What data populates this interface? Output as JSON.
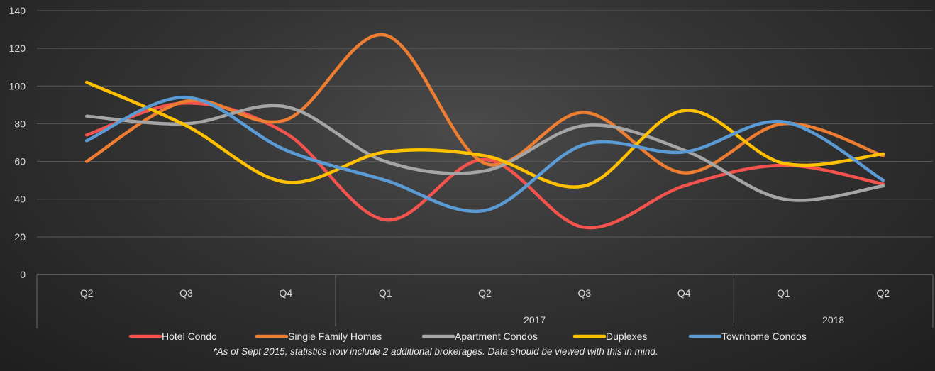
{
  "chart_data": {
    "type": "line",
    "smooth": true,
    "title": "",
    "xlabel": "",
    "ylabel": "",
    "ylim": [
      0,
      140
    ],
    "y_ticks": [
      0,
      20,
      40,
      60,
      80,
      100,
      120,
      140
    ],
    "grid": "horizontal",
    "legend_position": "bottom",
    "categories": [
      "Q2",
      "Q3",
      "Q4",
      "Q1",
      "Q2",
      "Q3",
      "Q4",
      "Q1",
      "Q2"
    ],
    "year_groups": [
      {
        "label": "",
        "start": 0,
        "end": 2
      },
      {
        "label": "2017",
        "start": 3,
        "end": 6
      },
      {
        "label": "2018",
        "start": 7,
        "end": 8
      }
    ],
    "series": [
      {
        "name": "Hotel Condo",
        "color": "#f4524d",
        "values": [
          74,
          91,
          75,
          29,
          61,
          25,
          47,
          58,
          48
        ]
      },
      {
        "name": "Single Family Homes",
        "color": "#ed7d31",
        "values": [
          60,
          92,
          82,
          127,
          59,
          86,
          54,
          80,
          63
        ]
      },
      {
        "name": "Apartment Condos",
        "color": "#a5a5a5",
        "values": [
          84,
          80,
          89,
          60,
          55,
          79,
          66,
          40,
          47
        ]
      },
      {
        "name": "Duplexes",
        "color": "#ffc000",
        "values": [
          102,
          79,
          49,
          65,
          63,
          47,
          87,
          59,
          64
        ]
      },
      {
        "name": "Townhome Condos",
        "color": "#5b9bd5",
        "values": [
          71,
          94,
          66,
          50,
          34,
          69,
          65,
          81,
          50
        ]
      }
    ],
    "footnote": "*As of Sept 2015, statistics now include 2 additional brokerages. Data should be viewed with this in mind."
  }
}
